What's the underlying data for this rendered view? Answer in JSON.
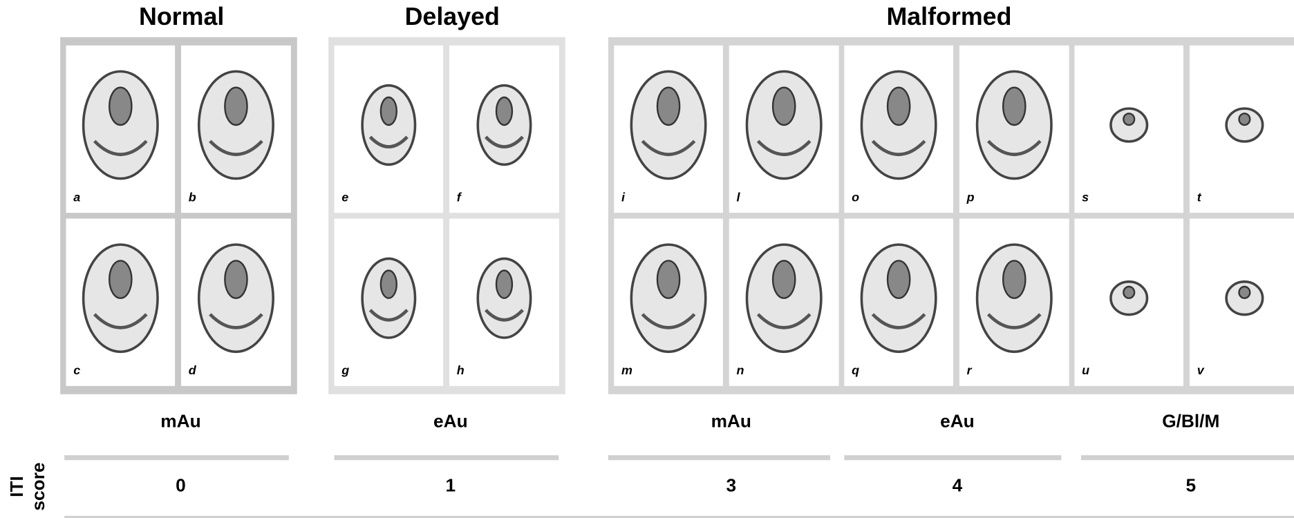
{
  "groups": [
    {
      "title": "Normal",
      "panels": [
        "a",
        "b",
        "c",
        "d"
      ]
    },
    {
      "title": "Delayed",
      "panels": [
        "e",
        "f",
        "g",
        "h"
      ]
    },
    {
      "title": "Malformed",
      "panels": [
        "i",
        "l",
        "o",
        "p",
        "s",
        "t",
        "m",
        "n",
        "q",
        "r",
        "u",
        "v"
      ]
    }
  ],
  "stages": [
    {
      "label": "mAu",
      "score": 0
    },
    {
      "label": "eAu",
      "score": 1
    },
    {
      "label": "mAu",
      "score": 3
    },
    {
      "label": "eAu",
      "score": 4
    },
    {
      "label": "G/Bl/M",
      "score": 5
    }
  ],
  "score_label": [
    "ITI",
    "score"
  ]
}
